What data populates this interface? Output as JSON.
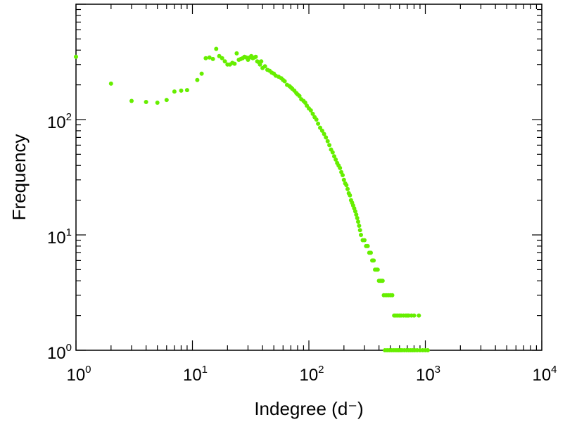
{
  "chart_data": {
    "type": "scatter",
    "xlabel": "Indegree (d⁻)",
    "ylabel": "Frequency",
    "xscale": "log",
    "yscale": "log",
    "xlim": [
      1,
      10000
    ],
    "ylim": [
      1,
      1000
    ],
    "grid": false,
    "marker_color": "#66ee00",
    "x_ticks": [
      {
        "base": "10",
        "exp": "0",
        "value": 1
      },
      {
        "base": "10",
        "exp": "1",
        "value": 10
      },
      {
        "base": "10",
        "exp": "2",
        "value": 100
      },
      {
        "base": "10",
        "exp": "3",
        "value": 1000
      },
      {
        "base": "10",
        "exp": "4",
        "value": 10000
      }
    ],
    "y_ticks": [
      {
        "base": "10",
        "exp": "0",
        "value": 1
      },
      {
        "base": "10",
        "exp": "1",
        "value": 10
      },
      {
        "base": "10",
        "exp": "2",
        "value": 100
      }
    ],
    "points": [
      [
        1,
        350
      ],
      [
        2,
        205
      ],
      [
        3,
        145
      ],
      [
        4,
        142
      ],
      [
        5,
        140
      ],
      [
        6,
        148
      ],
      [
        7,
        175
      ],
      [
        8,
        178
      ],
      [
        9,
        180
      ],
      [
        11,
        220
      ],
      [
        12,
        250
      ],
      [
        13,
        340
      ],
      [
        14,
        345
      ],
      [
        15,
        335
      ],
      [
        16,
        410
      ],
      [
        17,
        355
      ],
      [
        18,
        340
      ],
      [
        19,
        320
      ],
      [
        20,
        300
      ],
      [
        21,
        300
      ],
      [
        22,
        310
      ],
      [
        23,
        305
      ],
      [
        24,
        375
      ],
      [
        25,
        330
      ],
      [
        26,
        335
      ],
      [
        27,
        340
      ],
      [
        28,
        350
      ],
      [
        29,
        345
      ],
      [
        30,
        330
      ],
      [
        31,
        345
      ],
      [
        32,
        355
      ],
      [
        33,
        340
      ],
      [
        34,
        345
      ],
      [
        35,
        350
      ],
      [
        36,
        320
      ],
      [
        37,
        315
      ],
      [
        38,
        300
      ],
      [
        39,
        320
      ],
      [
        40,
        280
      ],
      [
        42,
        290
      ],
      [
        44,
        270
      ],
      [
        46,
        265
      ],
      [
        48,
        255
      ],
      [
        50,
        250
      ],
      [
        52,
        240
      ],
      [
        55,
        235
      ],
      [
        58,
        228
      ],
      [
        60,
        220
      ],
      [
        62,
        215
      ],
      [
        65,
        200
      ],
      [
        68,
        195
      ],
      [
        70,
        190
      ],
      [
        72,
        185
      ],
      [
        75,
        178
      ],
      [
        78,
        170
      ],
      [
        80,
        165
      ],
      [
        83,
        160
      ],
      [
        86,
        150
      ],
      [
        90,
        145
      ],
      [
        93,
        140
      ],
      [
        96,
        132
      ],
      [
        100,
        125
      ],
      [
        104,
        120
      ],
      [
        108,
        112
      ],
      [
        112,
        105
      ],
      [
        116,
        100
      ],
      [
        120,
        92
      ],
      [
        125,
        85
      ],
      [
        130,
        80
      ],
      [
        135,
        75
      ],
      [
        140,
        70
      ],
      [
        145,
        65
      ],
      [
        150,
        60
      ],
      [
        155,
        55
      ],
      [
        160,
        52
      ],
      [
        165,
        48
      ],
      [
        170,
        45
      ],
      [
        175,
        42
      ],
      [
        180,
        40
      ],
      [
        185,
        38
      ],
      [
        190,
        35
      ],
      [
        195,
        33
      ],
      [
        200,
        30
      ],
      [
        205,
        28
      ],
      [
        210,
        27
      ],
      [
        215,
        25
      ],
      [
        220,
        23
      ],
      [
        225,
        22
      ],
      [
        230,
        20
      ],
      [
        235,
        19
      ],
      [
        240,
        18
      ],
      [
        245,
        17
      ],
      [
        250,
        16
      ],
      [
        255,
        15
      ],
      [
        260,
        14
      ],
      [
        265,
        13
      ],
      [
        270,
        12
      ],
      [
        275,
        11
      ],
      [
        280,
        10
      ],
      [
        290,
        9
      ],
      [
        300,
        9
      ],
      [
        310,
        8
      ],
      [
        320,
        8
      ],
      [
        330,
        7
      ],
      [
        340,
        7
      ],
      [
        350,
        6
      ],
      [
        360,
        6
      ],
      [
        370,
        5
      ],
      [
        380,
        5
      ],
      [
        390,
        5
      ],
      [
        400,
        4
      ],
      [
        410,
        4
      ],
      [
        420,
        4
      ],
      [
        430,
        4
      ],
      [
        440,
        3
      ],
      [
        460,
        3
      ],
      [
        480,
        3
      ],
      [
        500,
        3
      ],
      [
        520,
        3
      ],
      [
        540,
        2
      ],
      [
        560,
        2
      ],
      [
        580,
        2
      ],
      [
        600,
        2
      ],
      [
        620,
        2
      ],
      [
        650,
        2
      ],
      [
        680,
        2
      ],
      [
        700,
        2
      ],
      [
        720,
        2
      ],
      [
        760,
        2
      ],
      [
        800,
        2
      ],
      [
        880,
        2
      ],
      [
        450,
        1
      ],
      [
        470,
        1
      ],
      [
        490,
        1
      ],
      [
        510,
        1
      ],
      [
        530,
        1
      ],
      [
        550,
        1
      ],
      [
        570,
        1
      ],
      [
        590,
        1
      ],
      [
        610,
        1
      ],
      [
        630,
        1
      ],
      [
        660,
        1
      ],
      [
        690,
        1
      ],
      [
        720,
        1
      ],
      [
        750,
        1
      ],
      [
        780,
        1
      ],
      [
        810,
        1
      ],
      [
        850,
        1
      ],
      [
        900,
        1
      ],
      [
        950,
        1
      ],
      [
        1000,
        1
      ],
      [
        1050,
        1
      ]
    ]
  }
}
